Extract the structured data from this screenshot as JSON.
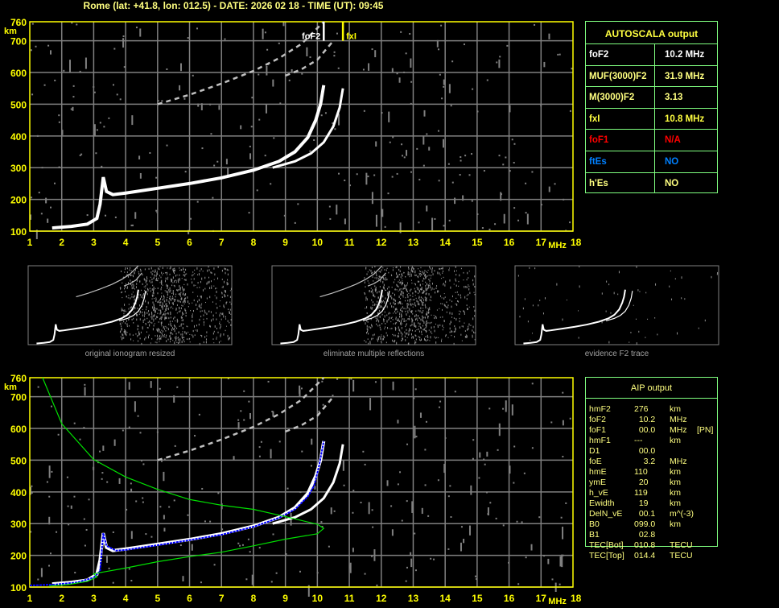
{
  "title": "Rome (lat: +41.8, lon: 012.5) - DATE: 2026 02 18 - TIME (UT): 09:45",
  "colors": {
    "title": "#ffff80",
    "axis": "#ffff00",
    "grid": "#808080",
    "table_border": "#80ff80",
    "o_trace": "#ffffff",
    "aip_profile": "#00e000",
    "aip_fit": "#0000ff",
    "noise": "#808080"
  },
  "autoscala": {
    "header": "AUTOSCALA output",
    "rows": [
      {
        "label": "foF2",
        "value": "10.2 MHz",
        "color": "#ffffff"
      },
      {
        "label": "MUF(3000)F2",
        "value": "31.9 MHz",
        "color": "#ffff80"
      },
      {
        "label": "M(3000)F2",
        "value": "3.13",
        "color": "#ffff80"
      },
      {
        "label": "fxI",
        "value": "10.8 MHz",
        "color": "#ffff40"
      },
      {
        "label": "foF1",
        "value": "N/A",
        "color": "#ff0000"
      },
      {
        "label": "ftEs",
        "value": "NO",
        "color": "#0080ff"
      },
      {
        "label": "h'Es",
        "value": "NO",
        "color": "#ffff80"
      }
    ]
  },
  "aip": {
    "header": "AIP output",
    "rows": [
      {
        "label": "hmF2",
        "value": "276",
        "unit": "km",
        "extra": ""
      },
      {
        "label": "foF2",
        "value": "  10.2",
        "unit": "MHz",
        "extra": ""
      },
      {
        "label": "foF1",
        "value": "  00.0",
        "unit": "MHz",
        "extra": "[PN]"
      },
      {
        "label": "hmF1",
        "value": "---",
        "unit": "km",
        "extra": ""
      },
      {
        "label": "D1",
        "value": "  00.0",
        "unit": "",
        "extra": ""
      },
      {
        "label": "foE",
        "value": "    3.2",
        "unit": "MHz",
        "extra": ""
      },
      {
        "label": "hmE",
        "value": "110",
        "unit": "km",
        "extra": ""
      },
      {
        "label": "ymE",
        "value": "  20",
        "unit": "km",
        "extra": ""
      },
      {
        "label": "h_vE",
        "value": "119",
        "unit": "km",
        "extra": ""
      },
      {
        "label": "Ewidth",
        "value": "  19",
        "unit": "km",
        "extra": ""
      },
      {
        "label": "DelN_vE",
        "value": "  00.1",
        "unit": "m^(-3)",
        "extra": ""
      },
      {
        "label": "B0",
        "value": "099.0",
        "unit": "km",
        "extra": ""
      },
      {
        "label": "B1",
        "value": "  02.8",
        "unit": "",
        "extra": ""
      },
      {
        "label": "TEC[Bot]",
        "value": "010.8",
        "unit": "TECU",
        "extra": ""
      },
      {
        "label": "TEC[Top]",
        "value": "014.4",
        "unit": "TECU",
        "extra": ""
      }
    ]
  },
  "thumbnails": [
    {
      "caption": "original ionogram resized",
      "noise": "dense"
    },
    {
      "caption": "eliminate multiple reflections",
      "noise": "dense"
    },
    {
      "caption": "evidence F2 trace",
      "noise": "sparse"
    }
  ],
  "chart_data": [
    {
      "type": "scatter",
      "title": "",
      "xlabel": "MHz",
      "ylabel": "km",
      "xlim": [
        1,
        18
      ],
      "ylim": [
        100,
        760
      ],
      "xticks": [
        "1",
        "2",
        "3",
        "4",
        "5",
        "6",
        "7",
        "8",
        "9",
        "10",
        "11",
        "12",
        "13",
        "14",
        "15",
        "16",
        "17",
        "18"
      ],
      "yticks": [
        "100",
        "200",
        "300",
        "400",
        "500",
        "600",
        "700",
        "760"
      ],
      "grid": true,
      "annotations": [
        {
          "text": "foF2",
          "x": 10.2,
          "color": "#ffffff"
        },
        {
          "text": "fxI",
          "x": 10.8,
          "color": "#ffff00"
        }
      ],
      "series": [
        {
          "id": "o_trace",
          "x": [
            1.7,
            2.3,
            2.8,
            3.1,
            3.2,
            3.3,
            3.4,
            3.6,
            4,
            5,
            6,
            7,
            8,
            8.8,
            9.3,
            9.7,
            9.95,
            10.1,
            10.2
          ],
          "y": [
            110,
            115,
            122,
            140,
            185,
            270,
            225,
            215,
            220,
            235,
            250,
            268,
            292,
            320,
            350,
            395,
            450,
            500,
            560
          ]
        },
        {
          "id": "x_trace",
          "x": [
            8.6,
            9.3,
            9.8,
            10.2,
            10.5,
            10.7,
            10.8
          ],
          "y": [
            300,
            320,
            345,
            380,
            430,
            490,
            550
          ]
        },
        {
          "id": "second_hop",
          "x": [
            5,
            6,
            7,
            8,
            8.8,
            9.5,
            10.2
          ],
          "y": [
            500,
            530,
            565,
            605,
            645,
            690,
            760
          ]
        },
        {
          "id": "second_hop_x",
          "x": [
            9,
            9.5,
            10,
            10.5
          ],
          "y": [
            590,
            610,
            640,
            700
          ]
        }
      ]
    },
    {
      "type": "scatter",
      "title": "",
      "xlabel": "MHz",
      "ylabel": "km",
      "xlim": [
        1,
        18
      ],
      "ylim": [
        100,
        760
      ],
      "xticks": [
        "1",
        "2",
        "3",
        "4",
        "5",
        "6",
        "7",
        "8",
        "9",
        "10",
        "11",
        "12",
        "13",
        "14",
        "15",
        "16",
        "17",
        "18"
      ],
      "yticks": [
        "100",
        "200",
        "300",
        "400",
        "500",
        "600",
        "700",
        "760"
      ],
      "grid": true,
      "series": [
        {
          "id": "o_trace",
          "x": [
            1.7,
            2.3,
            2.8,
            3.1,
            3.2,
            3.3,
            3.4,
            3.6,
            4,
            5,
            6,
            7,
            8,
            8.8,
            9.3,
            9.7,
            9.95,
            10.1,
            10.2
          ],
          "y": [
            110,
            115,
            122,
            140,
            185,
            270,
            225,
            215,
            220,
            235,
            250,
            268,
            292,
            320,
            350,
            395,
            450,
            500,
            560
          ]
        },
        {
          "id": "x_trace",
          "x": [
            8.6,
            9.3,
            9.8,
            10.2,
            10.5,
            10.7,
            10.8
          ],
          "y": [
            300,
            320,
            345,
            380,
            430,
            490,
            550
          ]
        },
        {
          "id": "second_hop",
          "x": [
            5,
            6,
            7,
            8,
            8.8,
            9.5,
            10.2
          ],
          "y": [
            500,
            530,
            565,
            605,
            645,
            690,
            760
          ]
        },
        {
          "id": "second_hop_x",
          "x": [
            9,
            9.5,
            10,
            10.5
          ],
          "y": [
            590,
            610,
            640,
            700
          ]
        },
        {
          "id": "aip_fit",
          "x": [
            1,
            1.8,
            2.5,
            3.0,
            3.2,
            3.3,
            3.4,
            3.7,
            4,
            5,
            6,
            7,
            8,
            8.8,
            9.3,
            9.7,
            9.9,
            10.05,
            10.2
          ],
          "y": [
            105,
            108,
            115,
            130,
            150,
            270,
            230,
            215,
            217,
            232,
            248,
            265,
            290,
            318,
            345,
            385,
            420,
            480,
            560
          ]
        },
        {
          "id": "aip_profile",
          "x": [
            1.4,
            2,
            3,
            4,
            5,
            6,
            7,
            8,
            9,
            10,
            10.2,
            10,
            9,
            8,
            7,
            6,
            5,
            4,
            3,
            3.1,
            2.8,
            2.2,
            1.6
          ],
          "y": [
            760,
            615,
            502,
            447,
            408,
            376,
            358,
            345,
            322,
            298,
            285,
            268,
            251,
            230,
            210,
            196,
            180,
            160,
            142,
            132,
            118,
            108,
            103
          ]
        }
      ]
    }
  ]
}
